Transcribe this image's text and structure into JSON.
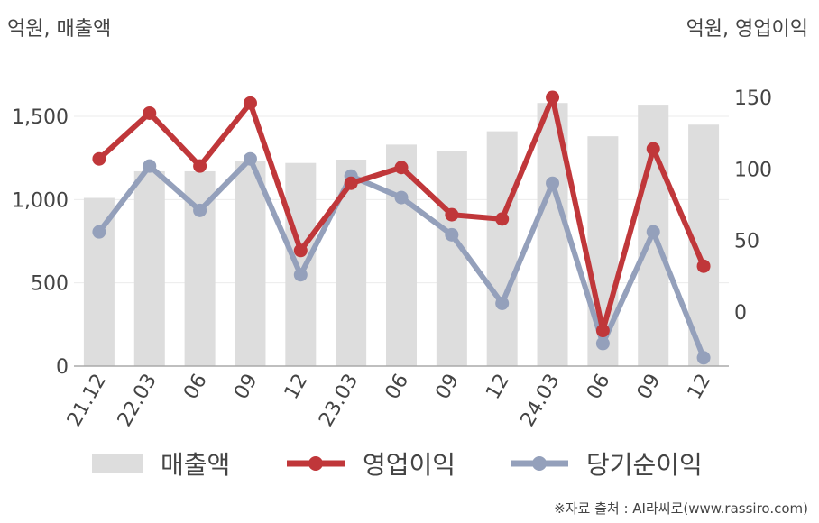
{
  "units": {
    "left": "억원, 매출액",
    "right": "억원, 영업이익"
  },
  "source": "※자료 출처 : AI라씨로(www.rassiro.com)",
  "colors": {
    "revenue": "#dddddd",
    "operating_profit": "#c0373a",
    "net_income": "#94a0bb"
  },
  "chart_data": {
    "type": "bar+line",
    "categories": [
      "21.12",
      "22.03",
      "06",
      "09",
      "12",
      "23.03",
      "06",
      "09",
      "12",
      "24.03",
      "06",
      "09",
      "12"
    ],
    "series": [
      {
        "name": "매출액",
        "type": "bar",
        "axis": "left",
        "values": [
          1010,
          1170,
          1170,
          1230,
          1220,
          1240,
          1330,
          1290,
          1410,
          1580,
          1380,
          1570,
          1450
        ]
      },
      {
        "name": "영업이익",
        "type": "line",
        "axis": "right",
        "values": [
          107,
          139,
          102,
          146,
          43,
          90,
          101,
          68,
          65,
          150,
          -13,
          114,
          32
        ]
      },
      {
        "name": "당기순이익",
        "type": "line",
        "axis": "right",
        "values": [
          56,
          102,
          71,
          107,
          26,
          95,
          80,
          54,
          6,
          90,
          -22,
          56,
          -32
        ]
      }
    ],
    "left_axis": {
      "ticks": [
        "0",
        "500",
        "1,000",
        "1,500"
      ],
      "tick_values": [
        0,
        500,
        1000,
        1500
      ],
      "range": [
        0,
        1700
      ]
    },
    "right_axis": {
      "ticks": [
        "0",
        "50",
        "100",
        "150"
      ],
      "tick_values": [
        0,
        50,
        100,
        150
      ],
      "range": [
        -38,
        166
      ]
    },
    "grid": true,
    "legend_position": "bottom"
  }
}
